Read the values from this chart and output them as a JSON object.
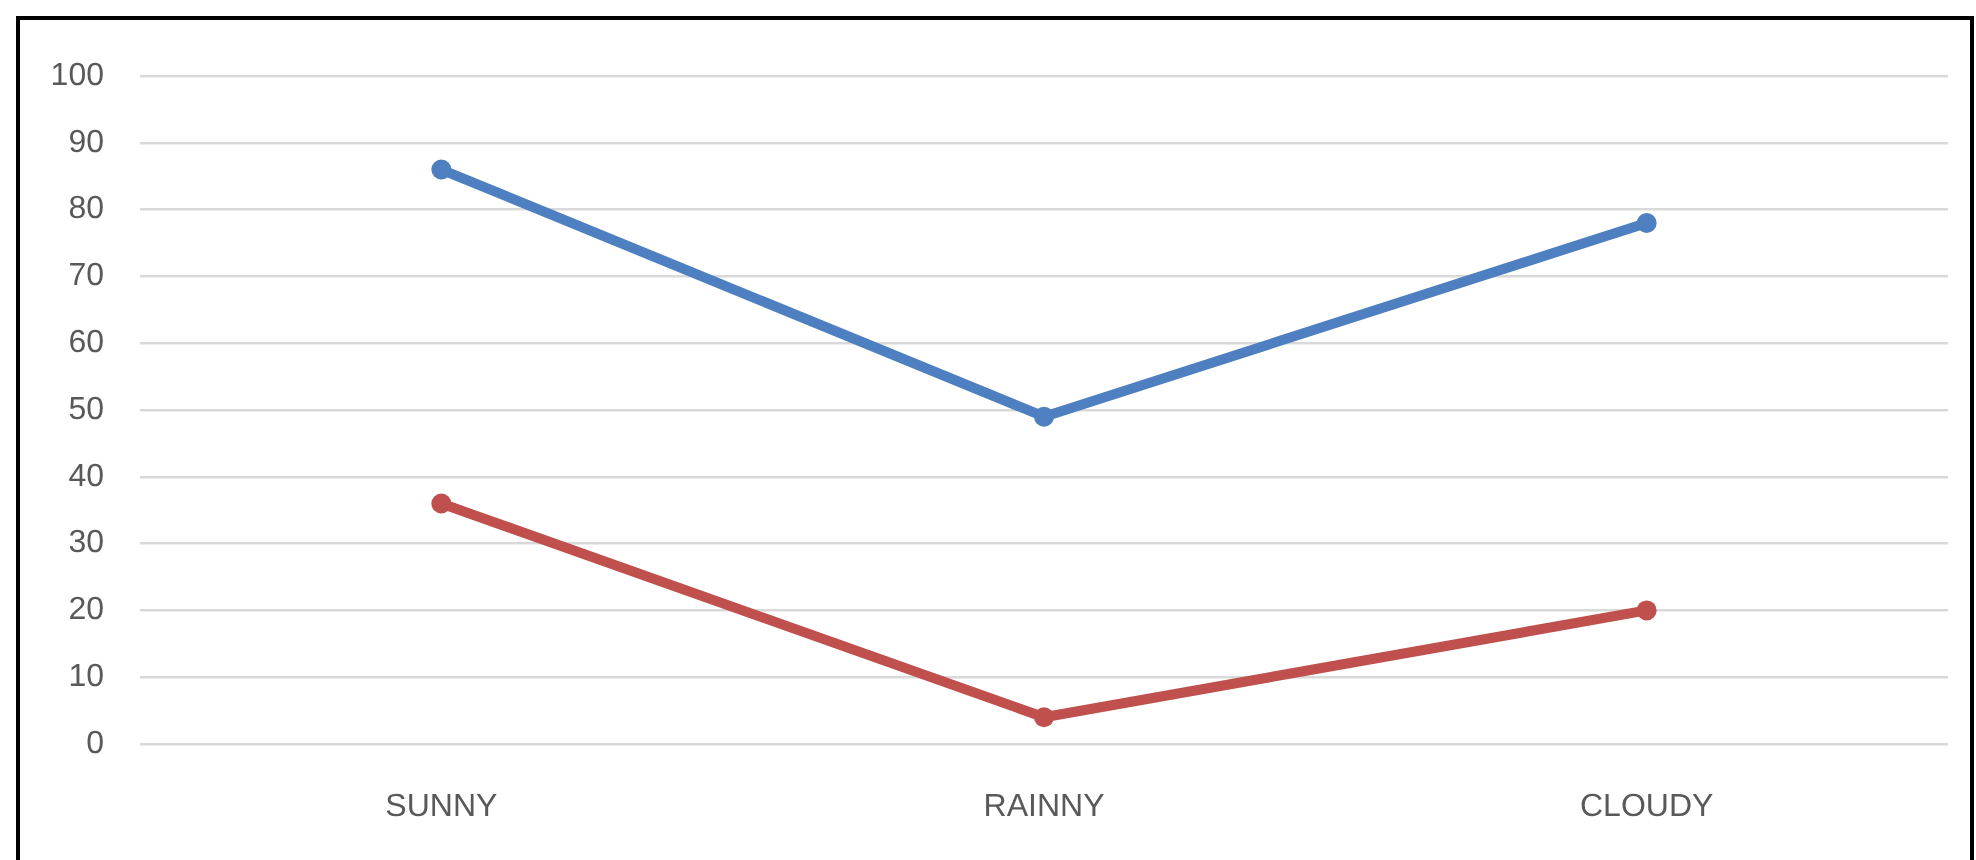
{
  "chart_data": {
    "type": "line",
    "categories": [
      "SUNNY",
      "RAINNY",
      "CLOUDY"
    ],
    "series": [
      {
        "color": "#4e7fc0",
        "values": [
          86,
          49,
          78
        ]
      },
      {
        "color": "#c0504d",
        "values": [
          36,
          4,
          20
        ]
      }
    ],
    "ylim": [
      0,
      100
    ],
    "yticks": [
      0,
      10,
      20,
      30,
      40,
      50,
      60,
      70,
      80,
      90,
      100
    ],
    "grid": "y",
    "marker": "circle",
    "line_style": "solid"
  }
}
